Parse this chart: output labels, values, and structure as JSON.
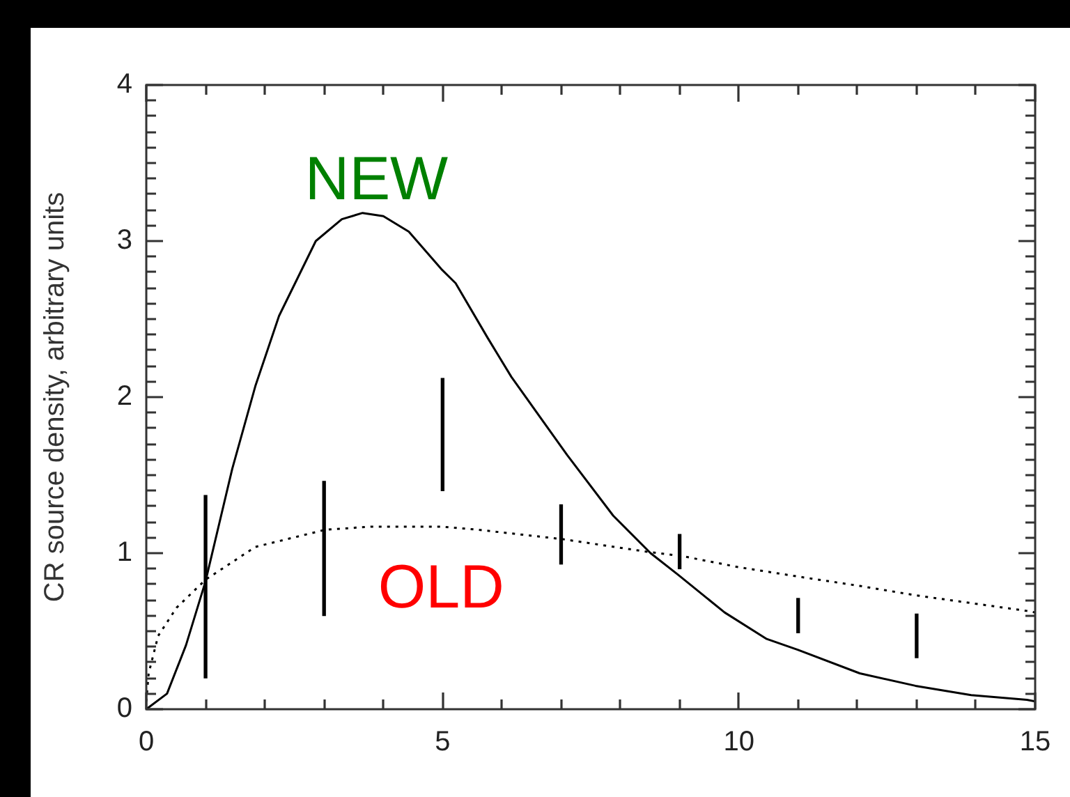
{
  "chart_data": {
    "type": "line",
    "ylabel": "CR source density, arbitrary units",
    "xlim": [
      0,
      15
    ],
    "ylim": [
      0,
      4
    ],
    "xticks": [
      0,
      {
        "value": 1,
        "label": null
      },
      {
        "value": 2,
        "label": null
      },
      {
        "value": 3,
        "label": null
      },
      {
        "value": 4,
        "label": null
      },
      5,
      {
        "value": 6,
        "label": null
      },
      {
        "value": 7,
        "label": null
      },
      {
        "value": 8,
        "label": null
      },
      {
        "value": 9,
        "label": null
      },
      10,
      {
        "value": 11,
        "label": null
      },
      {
        "value": 12,
        "label": null
      },
      {
        "value": 13,
        "label": null
      },
      {
        "value": 14,
        "label": null
      },
      15
    ],
    "yticks": [
      0,
      {
        "value": 0.1,
        "label": null
      },
      {
        "value": 0.2,
        "label": null
      },
      {
        "value": 0.3,
        "label": null
      },
      {
        "value": 0.4,
        "label": null
      },
      {
        "value": 0.5,
        "label": null
      },
      {
        "value": 0.6,
        "label": null
      },
      {
        "value": 0.7,
        "label": null
      },
      {
        "value": 0.8,
        "label": null
      },
      {
        "value": 0.9,
        "label": null
      },
      1,
      {
        "value": 1.1,
        "label": null
      },
      {
        "value": 1.2,
        "label": null
      },
      {
        "value": 1.3,
        "label": null
      },
      {
        "value": 1.4,
        "label": null
      },
      {
        "value": 1.5,
        "label": null
      },
      {
        "value": 1.6,
        "label": null
      },
      {
        "value": 1.7,
        "label": null
      },
      {
        "value": 1.8,
        "label": null
      },
      {
        "value": 1.9,
        "label": null
      },
      2,
      {
        "value": 2.1,
        "label": null
      },
      {
        "value": 2.2,
        "label": null
      },
      {
        "value": 2.3,
        "label": null
      },
      {
        "value": 2.4,
        "label": null
      },
      {
        "value": 2.5,
        "label": null
      },
      {
        "value": 2.6,
        "label": null
      },
      {
        "value": 2.7,
        "label": null
      },
      {
        "value": 2.8,
        "label": null
      },
      {
        "value": 2.9,
        "label": null
      },
      3,
      {
        "value": 3.1,
        "label": null
      },
      {
        "value": 3.2,
        "label": null
      },
      {
        "value": 3.3,
        "label": null
      },
      {
        "value": 3.4,
        "label": null
      },
      {
        "value": 3.5,
        "label": null
      },
      {
        "value": 3.6,
        "label": null
      },
      {
        "value": 3.7,
        "label": null
      },
      {
        "value": 3.8,
        "label": null
      },
      {
        "value": 3.9,
        "label": null
      },
      4
    ],
    "grid": false,
    "legend": false,
    "series": [
      {
        "color": "#000000",
        "line_style": "solid",
        "marker": "none",
        "x": [
          0,
          0.35,
          0.67,
          1.0,
          1.45,
          1.84,
          2.24,
          2.86,
          3.3,
          3.65,
          4.0,
          4.43,
          4.98,
          5.22,
          5.76,
          6.16,
          7.1,
          7.88,
          8.51,
          8.98,
          9.76,
          10.47,
          11.0,
          12.04,
          12.98,
          13.92,
          14.86,
          15
        ],
        "values": [
          0,
          0.1,
          0.41,
          0.82,
          1.54,
          2.07,
          2.52,
          3.0,
          3.14,
          3.18,
          3.16,
          3.06,
          2.82,
          2.73,
          2.38,
          2.13,
          1.63,
          1.24,
          1.0,
          0.86,
          0.62,
          0.45,
          0.38,
          0.23,
          0.15,
          0.09,
          0.06,
          0.05
        ]
      },
      {
        "color": "#000000",
        "line_style": "dotted",
        "marker": "none",
        "x": [
          0,
          0.04,
          0.2,
          0.51,
          1.0,
          1.84,
          3.02,
          3.8,
          4.98,
          5.6,
          7.02,
          8.43,
          9.06,
          10.0,
          11.0,
          12.04,
          12.98,
          13.92,
          14.86,
          15
        ],
        "values": [
          0.05,
          0.23,
          0.47,
          0.65,
          0.83,
          1.04,
          1.15,
          1.17,
          1.17,
          1.15,
          1.09,
          1.01,
          0.98,
          0.91,
          0.85,
          0.79,
          0.73,
          0.68,
          0.63,
          0.62
        ]
      },
      {
        "type": "bar",
        "color": "#000000",
        "x": [
          1,
          3,
          5,
          7,
          9,
          11,
          13
        ],
        "base": [
          0.2,
          0.6,
          1.4,
          0.93,
          0.9,
          0.49,
          0.33
        ],
        "values": [
          1.17,
          0.86,
          0.72,
          0.38,
          0.22,
          0.22,
          0.28
        ]
      }
    ],
    "annotations": [
      "NEW",
      "OLD"
    ]
  }
}
